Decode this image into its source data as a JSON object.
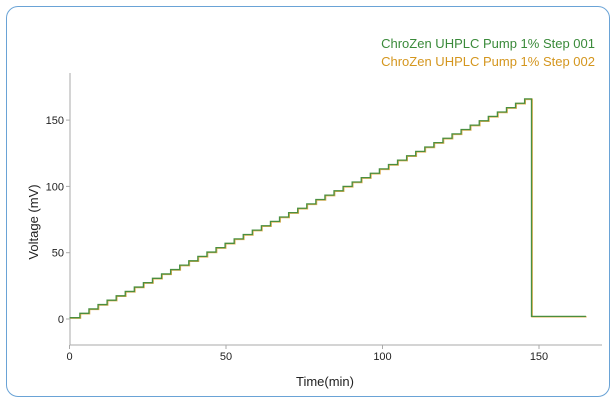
{
  "chart_data": {
    "type": "line",
    "title": "",
    "xlabel": "Time(min)",
    "ylabel": "Voltage (mV)",
    "xlim": [
      0,
      170
    ],
    "ylim": [
      -17,
      178
    ],
    "xticks": [
      0,
      50,
      100,
      150
    ],
    "yticks": [
      0,
      50,
      100,
      150
    ],
    "grid": false,
    "legend": "top-right",
    "colors": {
      "frame": "#6aa3d6",
      "axis": "#aaaaaa"
    },
    "series": [
      {
        "name": "ChroZen UHPLC Pump 1% Step 001",
        "color": "#3a8a3a",
        "step": {
          "t0": 3.3,
          "t_per_step": 2.9,
          "step_mv": 3.3,
          "start_mv": 1,
          "max_mv": 169,
          "plateau_end": 147.5,
          "drop_at": 147.6,
          "end_mv": 2,
          "end_time": 165
        }
      },
      {
        "name": "ChroZen UHPLC Pump 1% Step 002",
        "color": "#d4961e",
        "step": {
          "t0": 3.3,
          "t_per_step": 2.9,
          "step_mv": 3.3,
          "start_mv": 1,
          "max_mv": 169,
          "plateau_end": 147.5,
          "drop_at": 147.6,
          "end_mv": 2,
          "end_time": 165
        }
      }
    ]
  }
}
